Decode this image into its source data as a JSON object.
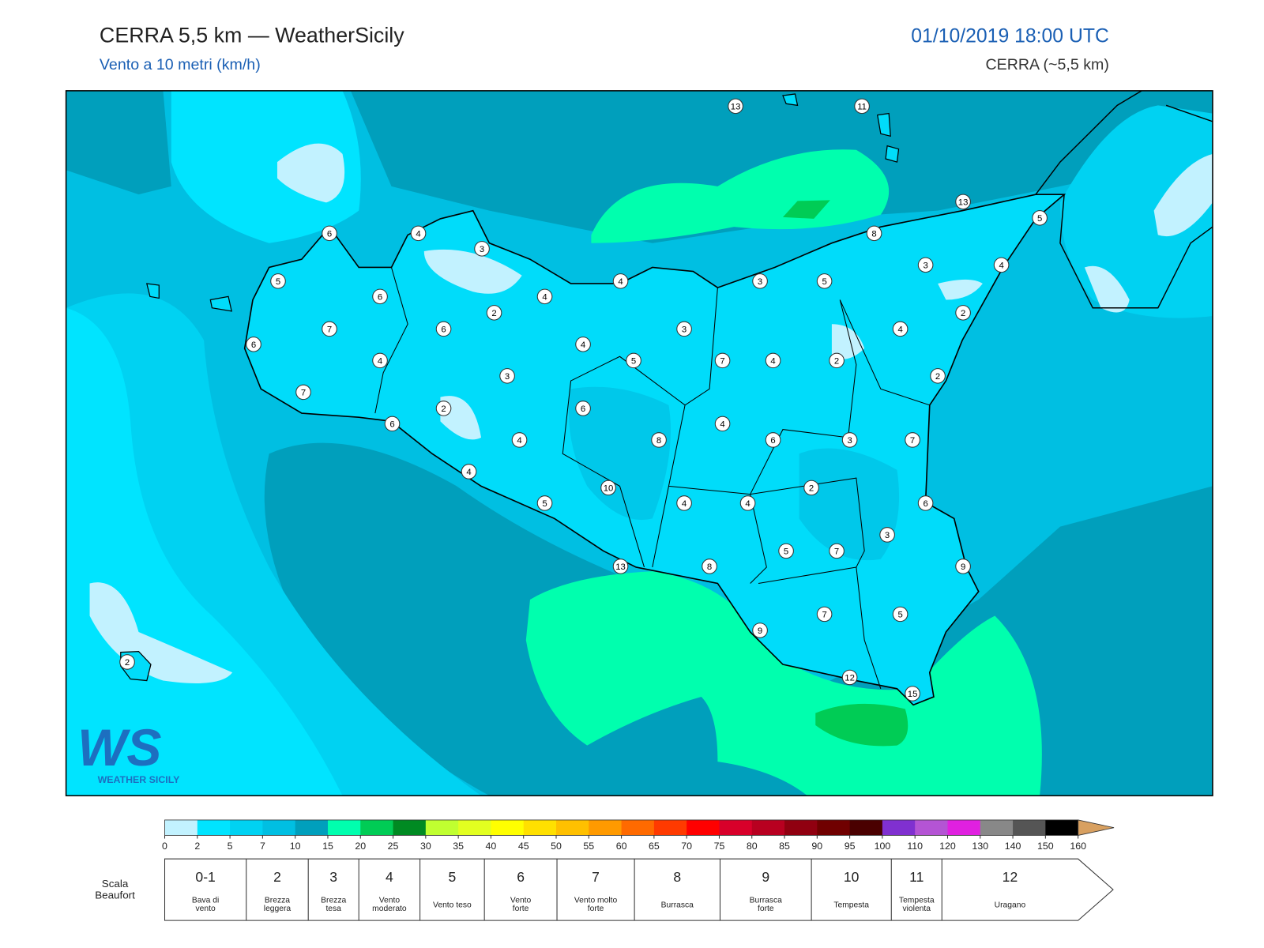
{
  "header": {
    "title": "CERRA 5,5 km — WeatherSicily",
    "subtitle": "Vento a 10 metri (km/h)",
    "datetime": "01/10/2019 18:00 UTC",
    "model": "CERRA (~5,5 km)"
  },
  "logo": {
    "mark": "WS",
    "text": "WEATHER SICILY"
  },
  "stations": [
    13,
    11,
    13,
    5,
    6,
    4,
    3,
    8,
    5,
    4,
    3,
    5,
    3,
    4,
    6,
    4,
    2,
    2,
    7,
    6,
    3,
    4,
    6,
    4,
    4,
    5,
    7,
    4,
    2,
    3,
    2,
    7,
    2,
    6,
    6,
    4,
    4,
    8,
    6,
    3,
    7,
    4,
    10,
    2,
    5,
    4,
    4,
    6,
    3,
    5,
    7,
    13,
    8,
    9,
    7,
    5,
    9,
    2,
    12,
    15
  ],
  "colorbar": {
    "ticks": [
      0,
      2,
      5,
      7,
      10,
      15,
      20,
      25,
      30,
      35,
      40,
      45,
      50,
      55,
      60,
      65,
      70,
      75,
      80,
      85,
      90,
      95,
      100,
      110,
      120,
      130,
      140,
      150,
      160
    ],
    "colors": [
      "#c2f2ff",
      "#00e4ff",
      "#00d2f2",
      "#00bfe2",
      "#009fbc",
      "#00ffae",
      "#00cc55",
      "#008a22",
      "#c0ff30",
      "#e2ff20",
      "#ffff00",
      "#ffe000",
      "#ffc000",
      "#ff9a00",
      "#ff6a00",
      "#ff3a00",
      "#ff0000",
      "#d8002a",
      "#b80020",
      "#900010",
      "#700000",
      "#4a0000",
      "#8030d0",
      "#b454d4",
      "#e020e0",
      "#888888",
      "#555555",
      "#000000",
      "#8a4a22",
      "#c8884a"
    ],
    "extend_color": "#d8a060"
  },
  "beaufort": {
    "title": [
      "Scala",
      "Beaufort"
    ],
    "classes": [
      {
        "force": "0-1",
        "label": [
          "Bava di",
          "vento"
        ]
      },
      {
        "force": "2",
        "label": [
          "Brezza",
          "leggera"
        ]
      },
      {
        "force": "3",
        "label": [
          "Brezza",
          "tesa"
        ]
      },
      {
        "force": "4",
        "label": [
          "Vento",
          "moderato"
        ]
      },
      {
        "force": "5",
        "label": [
          "Vento teso"
        ]
      },
      {
        "force": "6",
        "label": [
          "Vento",
          "forte"
        ]
      },
      {
        "force": "7",
        "label": [
          "Vento molto",
          "forte"
        ]
      },
      {
        "force": "8",
        "label": [
          "Burrasca"
        ]
      },
      {
        "force": "9",
        "label": [
          "Burrasca",
          "forte"
        ]
      },
      {
        "force": "10",
        "label": [
          "Tempesta"
        ]
      },
      {
        "force": "11",
        "label": [
          "Tempesta",
          "violenta"
        ]
      },
      {
        "force": "12",
        "label": [
          "Uragano"
        ]
      }
    ]
  }
}
